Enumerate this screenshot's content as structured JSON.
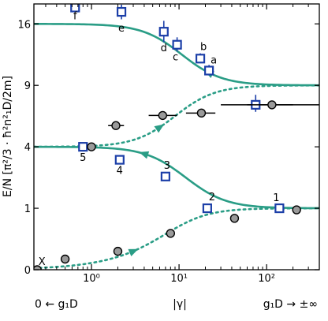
{
  "chart_data": {
    "type": "scatter",
    "x_scale": "log",
    "y_scale": "sqrt",
    "xlim": [
      0.22,
      400
    ],
    "ylim": [
      0,
      18.7
    ],
    "ylabel": "E/N [π²/3 · ħ²n²₁D/2m]",
    "xlabel": "|γ|",
    "x_left_label": "0 ← g₁D",
    "x_right_label": "g₁D → ±∞",
    "x_ticks": [
      {
        "value": 1,
        "label": "10⁰"
      },
      {
        "value": 10,
        "label": "10¹"
      },
      {
        "value": 100,
        "label": "10²"
      }
    ],
    "y_ticks": [
      {
        "value": 0,
        "label": "0"
      },
      {
        "value": 1,
        "label": "1"
      },
      {
        "value": 4,
        "label": "4"
      },
      {
        "value": 9,
        "label": "9"
      },
      {
        "value": 16,
        "label": "16"
      }
    ],
    "colors": {
      "theory": "#2a9d86",
      "square_edge": "#1c3fa8",
      "square_fill": "#ffffff",
      "circle_fill": "#9a9a9a",
      "error_bar_square": "#1c3fa8",
      "error_bar_circle": "#000000"
    },
    "series": [
      {
        "marker": "square",
        "points": [
          {
            "x": 0.65,
            "y": 18.2,
            "y_err": [
              17.7,
              18.6
            ],
            "label": "f"
          },
          {
            "x": 2.2,
            "y": 17.6,
            "y_err": [
              16.6,
              18.6
            ],
            "label": "e"
          },
          {
            "x": 6.7,
            "y": 15.0,
            "y_err": [
              13.7,
              16.4
            ],
            "label": "d"
          },
          {
            "x": 9.5,
            "y": 13.4,
            "y_err": [
              12.6,
              14.3
            ],
            "label": "c"
          },
          {
            "x": 17.5,
            "y": 11.8,
            "y_err": [
              11.3,
              12.4
            ],
            "label": "b"
          },
          {
            "x": 22,
            "y": 10.5,
            "y_err": [
              10.0,
              11.1
            ],
            "label": "a"
          },
          {
            "x": 75,
            "y": 7.2,
            "y_err": [
              6.6,
              8.1
            ],
            "x_err": [
              30,
              200
            ]
          },
          {
            "x": 0.8,
            "y": 4.0,
            "label": "5"
          },
          {
            "x": 2.1,
            "y": 3.2,
            "label": "4"
          },
          {
            "x": 7.0,
            "y": 2.3,
            "label": "3"
          },
          {
            "x": 21,
            "y": 1.0,
            "label": "2"
          },
          {
            "x": 140,
            "y": 1.0,
            "label": "1"
          }
        ]
      },
      {
        "marker": "circle",
        "points": [
          {
            "x": 0.24,
            "y": 0.0,
            "label": "X"
          },
          {
            "x": 0.5,
            "y": 0.03
          },
          {
            "x": 1.0,
            "y": 4.0
          },
          {
            "x": 1.9,
            "y": 5.5,
            "x_err": [
              1.55,
              2.35
            ]
          },
          {
            "x": 2.0,
            "y": 0.09
          },
          {
            "x": 6.5,
            "y": 6.3,
            "x_err": [
              4.5,
              9.5
            ]
          },
          {
            "x": 8.0,
            "y": 0.35
          },
          {
            "x": 18,
            "y": 6.5,
            "x_err": [
              12,
              26
            ]
          },
          {
            "x": 43,
            "y": 0.7
          },
          {
            "x": 115,
            "y": 7.2,
            "x_err": [
              60,
              400
            ]
          },
          {
            "x": 220,
            "y": 0.95
          }
        ]
      }
    ],
    "curves": [
      {
        "style": "solid",
        "from": [
          0.22,
          16.0
        ],
        "to": [
          400,
          9.0
        ],
        "arrow_near_x": 22,
        "arrow_dir": "left"
      },
      {
        "style": "dotted",
        "from": [
          0.22,
          4.0
        ],
        "to": [
          400,
          9.0
        ],
        "arrow_near_x": 6,
        "arrow_dir": "right"
      },
      {
        "style": "solid",
        "from": [
          0.22,
          4.0
        ],
        "to": [
          400,
          1.0
        ],
        "arrow_near_x": 4,
        "arrow_dir": "left"
      },
      {
        "style": "dotted",
        "from": [
          0.22,
          0.0
        ],
        "to": [
          400,
          1.0
        ],
        "arrow_near_x": 3,
        "arrow_dir": "right"
      }
    ]
  }
}
